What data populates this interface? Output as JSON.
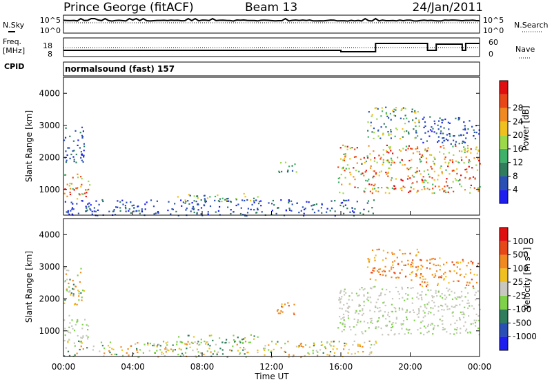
{
  "header": {
    "station": "Prince George (fitACF)",
    "beam": "Beam 13",
    "date": "24/Jan/2011"
  },
  "top_panels": {
    "nsky_label": "N.Sky",
    "nsky_ticks": [
      "10^5",
      "10^0"
    ],
    "nsearch_label": "N.Search",
    "nsearch_ticks": [
      "10^5",
      "10^0"
    ],
    "freq_label": "Freq.",
    "freq_unit": "[MHz]",
    "freq_ticks": [
      "18",
      "8"
    ],
    "nave_label": "Nave",
    "nave_ticks": [
      "60",
      "0"
    ],
    "cpid_label": "CPID",
    "cpid_text": "normalsound (fast) 157"
  },
  "chart_data": [
    {
      "type": "heatmap",
      "name": "power",
      "xlabel": "",
      "ylabel": "Slant Range [km]",
      "xlim": [
        0,
        24
      ],
      "ylim": [
        200,
        4500
      ],
      "y_ticks": [
        "1000",
        "2000",
        "3000",
        "4000"
      ],
      "colorbar": {
        "title": "Power [dB]",
        "ticks": [
          "4",
          "8",
          "12",
          "16",
          "20",
          "24",
          "28"
        ],
        "colors": [
          "#1e1ef0",
          "#2a4fb5",
          "#2f7d5c",
          "#3fb26a",
          "#9bd94a",
          "#f0c020",
          "#f08a20",
          "#e84818",
          "#e01010"
        ]
      },
      "regions": [
        {
          "t0": 0.0,
          "t1": 1.5,
          "r0": 700,
          "r1": 1500,
          "level": "high"
        },
        {
          "t0": 0.0,
          "t1": 1.2,
          "r0": 1800,
          "r1": 3000,
          "level": "low"
        },
        {
          "t0": 0.0,
          "t1": 18.0,
          "r0": 200,
          "r1": 700,
          "level": "low"
        },
        {
          "t0": 6.5,
          "t1": 11.2,
          "r0": 650,
          "r1": 900,
          "level": "mid"
        },
        {
          "t0": 12.2,
          "t1": 13.4,
          "r0": 1500,
          "r1": 1900,
          "level": "mid"
        },
        {
          "t0": 15.8,
          "t1": 24.0,
          "r0": 900,
          "r1": 2400,
          "level": "high"
        },
        {
          "t0": 17.5,
          "t1": 20.5,
          "r0": 2600,
          "r1": 3600,
          "level": "mid"
        },
        {
          "t0": 20.5,
          "t1": 24.0,
          "r0": 2400,
          "r1": 3300,
          "level": "low"
        }
      ]
    },
    {
      "type": "heatmap",
      "name": "velocity",
      "xlabel": "Time UT",
      "ylabel": "Slant Range [km]",
      "xlim": [
        0,
        24
      ],
      "ylim": [
        200,
        4500
      ],
      "x_ticks": [
        "00:00",
        "04:00",
        "08:00",
        "12:00",
        "16:00",
        "20:00",
        "00:00"
      ],
      "y_ticks": [
        "1000",
        "2000",
        "3000",
        "4000"
      ],
      "colorbar": {
        "title": "Velocity [m s^-1]",
        "ticks": [
          "1000",
          "500",
          "100",
          "25",
          "-25",
          "-100",
          "-500",
          "-1000"
        ],
        "colors": [
          "#1e1ef0",
          "#2a4fb5",
          "#2f7d5c",
          "#7fd14a",
          "#c8c8c0",
          "#f0c020",
          "#f08a20",
          "#e84818",
          "#e01010"
        ]
      },
      "regions": [
        {
          "t0": 0.0,
          "t1": 1.5,
          "r0": 700,
          "r1": 1500,
          "level": "ground"
        },
        {
          "t0": 0.0,
          "t1": 1.2,
          "r0": 1800,
          "r1": 3000,
          "level": "mixed"
        },
        {
          "t0": 0.0,
          "t1": 18.0,
          "r0": 200,
          "r1": 700,
          "level": "mixed"
        },
        {
          "t0": 6.5,
          "t1": 11.2,
          "r0": 650,
          "r1": 900,
          "level": "toward"
        },
        {
          "t0": 12.2,
          "t1": 13.4,
          "r0": 1500,
          "r1": 1900,
          "level": "away"
        },
        {
          "t0": 15.8,
          "t1": 24.0,
          "r0": 900,
          "r1": 2400,
          "level": "ground"
        },
        {
          "t0": 17.5,
          "t1": 20.5,
          "r0": 2600,
          "r1": 3600,
          "level": "away"
        },
        {
          "t0": 20.5,
          "t1": 24.0,
          "r0": 2400,
          "r1": 3300,
          "level": "away"
        }
      ]
    }
  ]
}
